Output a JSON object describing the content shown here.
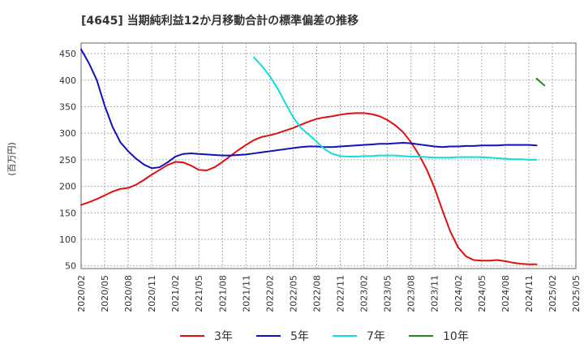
{
  "chart_data": {
    "type": "line",
    "title": "[4645]  当期純利益12か月移動合計の標準偏差の推移",
    "ylabel": "(百万円)",
    "xlabel": "",
    "ylim": [
      45,
      470
    ],
    "yticks": [
      50,
      100,
      150,
      200,
      250,
      300,
      350,
      400,
      450
    ],
    "xticks": [
      "2020/02",
      "2020/05",
      "2020/08",
      "2020/11",
      "2021/02",
      "2021/05",
      "2021/08",
      "2021/11",
      "2022/02",
      "2022/05",
      "2022/08",
      "2022/11",
      "2023/02",
      "2023/05",
      "2023/08",
      "2023/11",
      "2024/02",
      "2024/05",
      "2024/08",
      "2024/11",
      "2025/02",
      "2025/05"
    ],
    "grid": true,
    "legend_position": "bottom",
    "series": [
      {
        "name": "3年",
        "color": "#dd1111",
        "start": "2020/02",
        "values": [
          165,
          170,
          176,
          183,
          190,
          195,
          197,
          203,
          212,
          222,
          231,
          240,
          246,
          245,
          239,
          231,
          230,
          236,
          246,
          257,
          268,
          278,
          287,
          293,
          296,
          300,
          305,
          310,
          316,
          322,
          327,
          330,
          332,
          335,
          337,
          338,
          338,
          336,
          332,
          325,
          315,
          302,
          283,
          260,
          232,
          197,
          155,
          115,
          85,
          68,
          61,
          60,
          60,
          61,
          59,
          56,
          54,
          53,
          53
        ]
      },
      {
        "name": "5年",
        "color": "#1111bb",
        "start": "2020/02",
        "values": [
          458,
          432,
          400,
          352,
          312,
          283,
          266,
          252,
          241,
          234,
          236,
          245,
          256,
          261,
          262,
          261,
          260,
          259,
          258,
          258,
          259,
          260,
          262,
          264,
          266,
          268,
          270,
          272,
          274,
          275,
          275,
          274,
          274,
          275,
          276,
          277,
          278,
          279,
          280,
          280,
          281,
          282,
          281,
          279,
          277,
          275,
          274,
          275,
          275,
          276,
          276,
          277,
          277,
          277,
          278,
          278,
          278,
          278,
          277
        ]
      },
      {
        "name": "7年",
        "color": "#11dddd",
        "start": "2021/12",
        "values": [
          443,
          427,
          408,
          385,
          357,
          330,
          310,
          297,
          284,
          270,
          261,
          257,
          256,
          256,
          257,
          257,
          258,
          258,
          258,
          257,
          256,
          256,
          255,
          254,
          254,
          254,
          255,
          255,
          255,
          255,
          254,
          253,
          252,
          251,
          251,
          250,
          250
        ]
      },
      {
        "name": "10年",
        "color": "#228822",
        "start": "2024/12",
        "values": [
          403,
          390
        ]
      }
    ]
  }
}
